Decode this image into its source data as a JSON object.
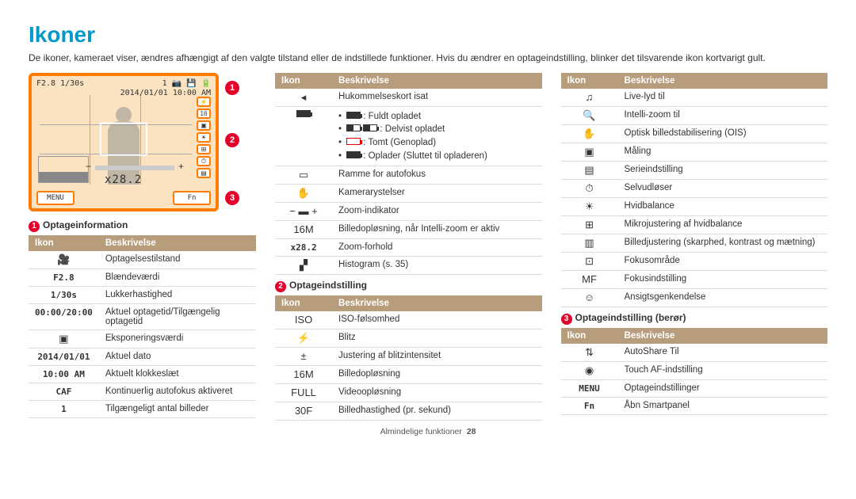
{
  "page": {
    "title": "Ikoner",
    "intro": "De ikoner, kameraet viser, ændres afhængigt af den valgte tilstand eller de indstillede funktioner. Hvis du ændrer en optageindstilling, blinker det tilsvarende ikon kortvarigt gult.",
    "footer_left": "Almindelige funktioner",
    "footer_page": "28"
  },
  "preview": {
    "top_left": "F2.8 1/30s",
    "top_right1": "1 📷 💾 🔋",
    "top_right2": "2014/01/01  10:00 AM",
    "zoom": "x28.2",
    "menu": "MENU",
    "fn": "Fn",
    "callouts": {
      "c1": "1",
      "c2": "2",
      "c3": "3"
    }
  },
  "sec1": {
    "title": "Optageinformation",
    "num": "1",
    "head_icon": "Ikon",
    "head_desc": "Beskrivelse",
    "rows": [
      {
        "ic": "🎥",
        "d": "Optagelsestilstand"
      },
      {
        "ic": "F2.8",
        "mono": true,
        "d": "Blændeværdi"
      },
      {
        "ic": "1/30s",
        "mono": true,
        "d": "Lukkerhastighed"
      },
      {
        "ic": "00:00/20:00",
        "mono": true,
        "d": "Aktuel optagetid/Tilgængelig optagetid"
      },
      {
        "ic": "▣",
        "d": "Eksponeringsværdi"
      },
      {
        "ic": "2014/01/01",
        "mono": true,
        "d": "Aktuel dato"
      },
      {
        "ic": "10:00 AM",
        "mono": true,
        "d": "Aktuelt klokkeslæt"
      },
      {
        "ic": "CAF",
        "mono": true,
        "d": "Kontinuerlig autofokus aktiveret"
      },
      {
        "ic": "1",
        "mono": true,
        "d": "Tilgængeligt antal billeder"
      }
    ]
  },
  "sec_top": {
    "head_icon": "Ikon",
    "head_desc": "Beskrivelse",
    "rows": [
      {
        "ic": "◂",
        "d": "Hukommelseskort isat"
      },
      {
        "ic": "battery",
        "d": "__battery__"
      },
      {
        "ic": "▭",
        "d": "Ramme for autofokus"
      },
      {
        "ic": "✋",
        "d": "Kamerarystelser"
      },
      {
        "ic": "− ▬ +",
        "d": "Zoom-indikator"
      },
      {
        "ic": "16M",
        "d": "Billedopløsning, når Intelli-zoom er aktiv"
      },
      {
        "ic": "x28.2",
        "mono": true,
        "d": "Zoom-forhold"
      },
      {
        "ic": "▞",
        "d": "Histogram (s. 35)"
      }
    ],
    "battery": {
      "l1": ": Fuldt opladet",
      "l2": ": Delvist opladet",
      "l3": ": Tomt (Genoplad)",
      "l4": ": Oplader (Sluttet til opladeren)"
    }
  },
  "sec2": {
    "title": "Optageindstilling",
    "num": "2",
    "head_icon": "Ikon",
    "head_desc": "Beskrivelse",
    "rows": [
      {
        "ic": "ISO",
        "d": "ISO-følsomhed"
      },
      {
        "ic": "⚡",
        "d": "Blitz"
      },
      {
        "ic": "±",
        "d": "Justering af blitzintensitet"
      },
      {
        "ic": "16M",
        "d": "Billedopløsning"
      },
      {
        "ic": "FULL",
        "d": "Videoopløsning"
      },
      {
        "ic": "30F",
        "d": "Billedhastighed (pr. sekund)"
      }
    ]
  },
  "sec_top_right": {
    "head_icon": "Ikon",
    "head_desc": "Beskrivelse",
    "rows": [
      {
        "ic": "♫",
        "d": "Live-lyd til"
      },
      {
        "ic": "🔍",
        "d": "Intelli-zoom til"
      },
      {
        "ic": "✋",
        "d": "Optisk billedstabilisering (OIS)"
      },
      {
        "ic": "▣",
        "d": "Måling"
      },
      {
        "ic": "▤",
        "d": "Serieindstilling"
      },
      {
        "ic": "⏱",
        "d": "Selvudløser"
      },
      {
        "ic": "☀",
        "d": "Hvidbalance"
      },
      {
        "ic": "⊞",
        "d": "Mikrojustering af hvidbalance"
      },
      {
        "ic": "▥",
        "d": "Billedjustering (skarphed, kontrast og mætning)"
      },
      {
        "ic": "⊡",
        "d": "Fokusområde"
      },
      {
        "ic": "MF",
        "d": "Fokusindstilling"
      },
      {
        "ic": "☺",
        "d": "Ansigtsgenkendelse"
      }
    ]
  },
  "sec3": {
    "title": "Optageindstilling (berør)",
    "num": "3",
    "head_icon": "Ikon",
    "head_desc": "Beskrivelse",
    "rows": [
      {
        "ic": "⇅",
        "d": "AutoShare Til"
      },
      {
        "ic": "◉",
        "d": "Touch AF-indstilling"
      },
      {
        "ic": "MENU",
        "mono": true,
        "d": "Optageindstillinger"
      },
      {
        "ic": "Fn",
        "mono": true,
        "d": "Åbn Smartpanel"
      }
    ]
  }
}
